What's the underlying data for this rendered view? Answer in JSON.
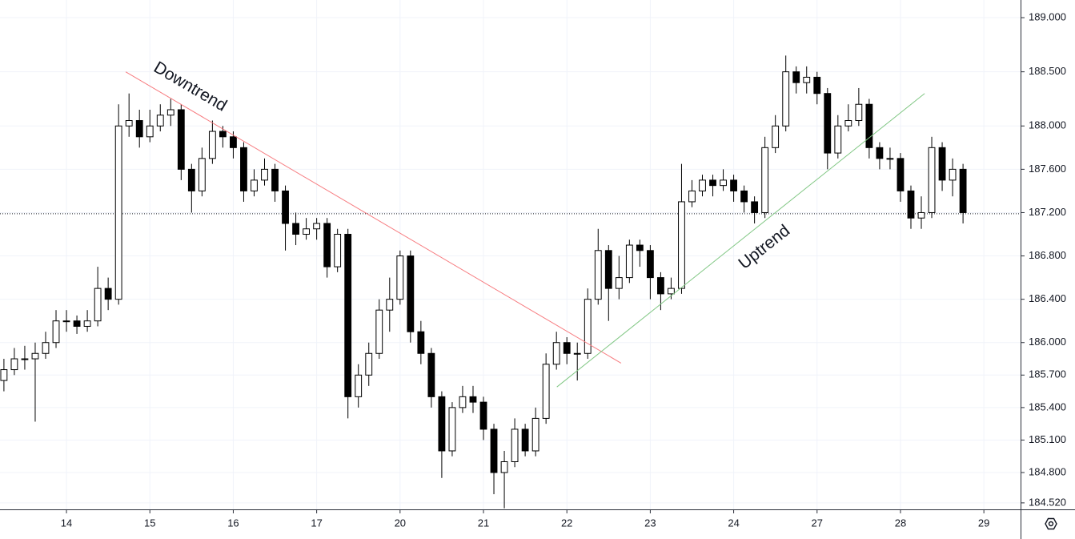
{
  "chart_data": {
    "type": "candlestick",
    "x": [
      -0.75,
      -0.625,
      -0.5,
      -0.375,
      -0.25,
      -0.125,
      0,
      0.125,
      0.25,
      0.375,
      0.5,
      0.625,
      0.75,
      0.875,
      1,
      1.125,
      1.25,
      1.375,
      1.5,
      1.625,
      1.75,
      1.875,
      2,
      2.125,
      2.25,
      2.375,
      2.5,
      2.625,
      2.75,
      2.875,
      3,
      3.125,
      3.25,
      3.375,
      3.5,
      3.625,
      3.75,
      3.875,
      4,
      4.125,
      4.25,
      4.375,
      4.5,
      4.625,
      4.75,
      4.875,
      5,
      5.125,
      5.25,
      5.375,
      5.5,
      5.625,
      5.75,
      5.875,
      6,
      6.125,
      6.25,
      6.375,
      6.5,
      6.625,
      6.75,
      6.875,
      7,
      7.125,
      7.25,
      7.375,
      7.5,
      7.625,
      7.75,
      7.875,
      8,
      8.125,
      8.25,
      8.375,
      8.5,
      8.625,
      8.75,
      8.875,
      9,
      9.125,
      9.25,
      9.375,
      9.5,
      9.625,
      9.75,
      9.875,
      10,
      10.125,
      10.25,
      10.375,
      10.5,
      10.625,
      10.75
    ],
    "open": [
      185.65,
      185.75,
      185.85,
      185.85,
      185.9,
      186.0,
      186.2,
      186.2,
      186.15,
      186.2,
      186.5,
      186.4,
      188.0,
      188.05,
      187.9,
      188.0,
      188.1,
      188.15,
      187.6,
      187.4,
      187.7,
      187.95,
      187.9,
      187.8,
      187.4,
      187.5,
      187.6,
      187.4,
      187.1,
      187.0,
      187.05,
      187.1,
      186.7,
      187.0,
      185.5,
      185.7,
      185.9,
      186.3,
      186.4,
      186.8,
      186.1,
      185.9,
      185.5,
      185.0,
      185.4,
      185.5,
      185.45,
      185.2,
      184.8,
      184.9,
      185.2,
      185.0,
      185.3,
      185.8,
      186.0,
      185.9,
      185.9,
      186.4,
      186.85,
      186.5,
      186.6,
      186.9,
      186.85,
      186.6,
      186.45,
      186.5,
      187.3,
      187.4,
      187.5,
      187.45,
      187.5,
      187.4,
      187.3,
      187.2,
      187.8,
      188.0,
      188.5,
      188.4,
      188.45,
      188.3,
      187.75,
      188.0,
      188.05,
      188.2,
      187.8,
      187.7,
      187.7,
      187.4,
      187.15,
      187.2,
      187.8,
      187.5,
      187.6
    ],
    "high": [
      185.85,
      185.95,
      185.97,
      186.0,
      186.1,
      186.3,
      186.3,
      186.25,
      186.3,
      186.7,
      186.6,
      188.2,
      188.3,
      188.15,
      188.15,
      188.2,
      188.25,
      188.2,
      187.65,
      187.8,
      188.05,
      188.0,
      187.95,
      187.85,
      187.6,
      187.7,
      187.65,
      187.45,
      187.2,
      187.15,
      187.15,
      187.15,
      187.05,
      187.05,
      185.8,
      186.0,
      186.4,
      186.6,
      186.85,
      186.85,
      186.2,
      185.95,
      185.55,
      185.45,
      185.6,
      185.6,
      185.5,
      185.25,
      185.0,
      185.3,
      185.25,
      185.4,
      185.9,
      186.1,
      186.05,
      186.0,
      186.5,
      187.05,
      186.9,
      186.8,
      186.95,
      186.95,
      186.9,
      186.65,
      186.6,
      187.65,
      187.5,
      187.55,
      187.55,
      187.6,
      187.55,
      187.45,
      187.35,
      187.9,
      188.1,
      188.65,
      188.55,
      188.55,
      188.5,
      188.35,
      188.1,
      188.2,
      188.35,
      188.25,
      187.85,
      187.8,
      187.75,
      187.45,
      187.35,
      187.9,
      187.85,
      187.7,
      187.65
    ],
    "low": [
      185.55,
      185.7,
      185.75,
      185.27,
      185.85,
      185.95,
      186.1,
      186.08,
      186.1,
      186.15,
      186.3,
      186.35,
      187.9,
      187.8,
      187.85,
      187.95,
      188.0,
      187.5,
      187.2,
      187.35,
      187.65,
      187.8,
      187.7,
      187.3,
      187.35,
      187.45,
      187.3,
      186.85,
      186.9,
      186.95,
      186.95,
      186.6,
      186.65,
      185.3,
      185.4,
      185.6,
      185.85,
      186.1,
      186.35,
      186.0,
      185.8,
      185.4,
      184.75,
      184.95,
      185.35,
      185.35,
      185.1,
      184.6,
      184.47,
      184.85,
      184.95,
      184.95,
      185.25,
      185.75,
      185.8,
      185.65,
      185.85,
      186.35,
      186.2,
      186.4,
      186.55,
      186.7,
      186.4,
      186.3,
      186.4,
      186.45,
      187.25,
      187.35,
      187.35,
      187.4,
      187.3,
      187.2,
      187.1,
      187.15,
      187.75,
      187.95,
      188.3,
      188.3,
      188.2,
      187.6,
      187.7,
      187.95,
      188.0,
      187.7,
      187.6,
      187.6,
      187.3,
      187.05,
      187.05,
      187.15,
      187.4,
      187.35,
      187.1
    ],
    "close": [
      185.75,
      185.85,
      185.85,
      185.9,
      186.0,
      186.2,
      186.2,
      186.15,
      186.2,
      186.5,
      186.4,
      188.0,
      188.05,
      187.9,
      188.0,
      188.1,
      188.15,
      187.6,
      187.4,
      187.7,
      187.95,
      187.9,
      187.8,
      187.4,
      187.5,
      187.6,
      187.4,
      187.1,
      187.0,
      187.05,
      187.1,
      186.7,
      187.0,
      185.5,
      185.7,
      185.9,
      186.3,
      186.4,
      186.8,
      186.1,
      185.9,
      185.5,
      185.0,
      185.4,
      185.5,
      185.45,
      185.2,
      184.8,
      184.9,
      185.2,
      185.0,
      185.3,
      185.8,
      186.0,
      185.9,
      185.9,
      186.4,
      186.85,
      186.5,
      186.6,
      186.9,
      186.85,
      186.6,
      186.45,
      186.5,
      187.3,
      187.4,
      187.5,
      187.45,
      187.5,
      187.4,
      187.3,
      187.2,
      187.8,
      188.0,
      188.5,
      188.4,
      188.45,
      188.3,
      187.75,
      188.0,
      188.05,
      188.2,
      187.8,
      187.7,
      187.7,
      187.4,
      187.15,
      187.2,
      187.8,
      187.5,
      187.6,
      187.2
    ],
    "up_color": "#ffffff",
    "down_color": "#000000",
    "xlim": [
      -0.797,
      11.44
    ],
    "xticks": [
      {
        "value": 0,
        "label": "14"
      },
      {
        "value": 1,
        "label": "15"
      },
      {
        "value": 2,
        "label": "16"
      },
      {
        "value": 3,
        "label": "17"
      },
      {
        "value": 4,
        "label": "20"
      },
      {
        "value": 5,
        "label": "21"
      },
      {
        "value": 6,
        "label": "22"
      },
      {
        "value": 7,
        "label": "23"
      },
      {
        "value": 8,
        "label": "24"
      },
      {
        "value": 9,
        "label": "27"
      },
      {
        "value": 10,
        "label": "28"
      },
      {
        "value": 11,
        "label": "29"
      }
    ],
    "ylim": [
      184.46,
      189.163
    ],
    "yticks": [
      {
        "value": 184.52,
        "label": "184.520"
      },
      {
        "value": 184.8,
        "label": "184.800"
      },
      {
        "value": 185.1,
        "label": "185.100"
      },
      {
        "value": 185.4,
        "label": "185.400"
      },
      {
        "value": 185.7,
        "label": "185.700"
      },
      {
        "value": 186,
        "label": "186.000"
      },
      {
        "value": 186.4,
        "label": "186.400"
      },
      {
        "value": 186.8,
        "label": "186.800"
      },
      {
        "value": 187.2,
        "label": "187.200"
      },
      {
        "value": 187.6,
        "label": "187.600"
      },
      {
        "value": 188,
        "label": "188.000"
      },
      {
        "value": 188.5,
        "label": "188.500"
      },
      {
        "value": 189,
        "label": "189.000"
      }
    ],
    "grid": true,
    "price_line": 187.19,
    "trendlines": [
      {
        "label": "Downtrend",
        "color": "#f77c80",
        "x": [
          0.71,
          6.65
        ],
        "y": [
          188.5,
          185.81
        ]
      },
      {
        "label": "Uptrend",
        "color": "#81c784",
        "x": [
          5.88,
          10.29
        ],
        "y": [
          185.59,
          188.3
        ]
      }
    ]
  }
}
